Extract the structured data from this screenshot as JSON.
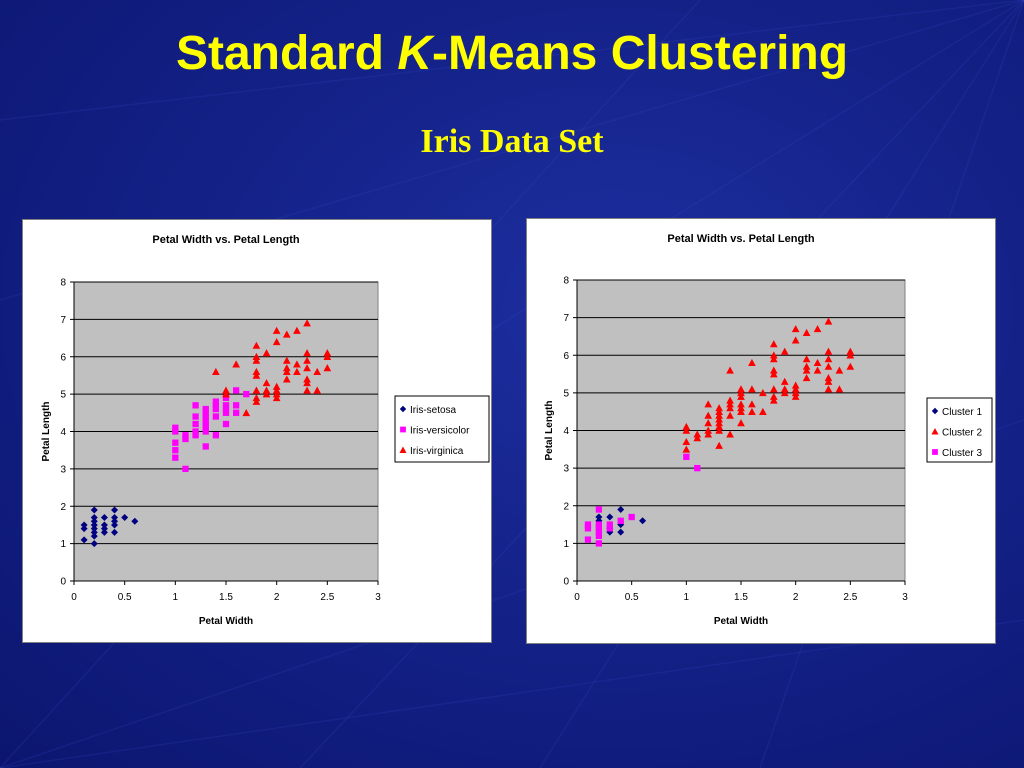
{
  "slide": {
    "title_prefix": "Standard ",
    "title_k": "K",
    "title_suffix": "-Means Clustering",
    "subtitle": "Iris Data Set"
  },
  "colors": {
    "background": "#142289",
    "title": "#ffff00",
    "plot_area": "#c0c0c0",
    "navy": "#000080",
    "magenta": "#ff00ff",
    "red": "#ff0000"
  },
  "chart_data": [
    {
      "type": "scatter",
      "title": "Petal Width vs. Petal Length",
      "xlabel": "Petal Width",
      "ylabel": "Petal Length",
      "xlim": [
        0,
        3
      ],
      "ylim": [
        0,
        8
      ],
      "xticks": [
        "0",
        "0.5",
        "1",
        "1.5",
        "2",
        "2.5",
        "3"
      ],
      "yticks": [
        "0",
        "1",
        "2",
        "3",
        "4",
        "5",
        "6",
        "7",
        "8"
      ],
      "grid": "horizontal",
      "legend_position": "right",
      "series": [
        {
          "name": "Iris-setosa",
          "marker": "diamond",
          "color": "#000080",
          "points": [
            [
              0.1,
              1.1
            ],
            [
              0.1,
              1.4
            ],
            [
              0.1,
              1.5
            ],
            [
              0.2,
              1.0
            ],
            [
              0.2,
              1.2
            ],
            [
              0.2,
              1.3
            ],
            [
              0.2,
              1.4
            ],
            [
              0.2,
              1.5
            ],
            [
              0.2,
              1.6
            ],
            [
              0.2,
              1.7
            ],
            [
              0.2,
              1.9
            ],
            [
              0.3,
              1.3
            ],
            [
              0.3,
              1.4
            ],
            [
              0.3,
              1.5
            ],
            [
              0.3,
              1.7
            ],
            [
              0.4,
              1.3
            ],
            [
              0.4,
              1.5
            ],
            [
              0.4,
              1.6
            ],
            [
              0.4,
              1.7
            ],
            [
              0.4,
              1.9
            ],
            [
              0.5,
              1.7
            ],
            [
              0.6,
              1.6
            ]
          ]
        },
        {
          "name": "Iris-versicolor",
          "marker": "square",
          "color": "#ff00ff",
          "points": [
            [
              1.0,
              3.3
            ],
            [
              1.0,
              3.5
            ],
            [
              1.0,
              3.7
            ],
            [
              1.0,
              4.0
            ],
            [
              1.0,
              4.1
            ],
            [
              1.1,
              3.0
            ],
            [
              1.1,
              3.8
            ],
            [
              1.1,
              3.9
            ],
            [
              1.2,
              3.9
            ],
            [
              1.2,
              4.0
            ],
            [
              1.2,
              4.2
            ],
            [
              1.2,
              4.4
            ],
            [
              1.2,
              4.7
            ],
            [
              1.3,
              3.6
            ],
            [
              1.3,
              4.0
            ],
            [
              1.3,
              4.1
            ],
            [
              1.3,
              4.2
            ],
            [
              1.3,
              4.3
            ],
            [
              1.3,
              4.4
            ],
            [
              1.3,
              4.5
            ],
            [
              1.3,
              4.6
            ],
            [
              1.4,
              3.9
            ],
            [
              1.4,
              4.4
            ],
            [
              1.4,
              4.6
            ],
            [
              1.4,
              4.7
            ],
            [
              1.4,
              4.8
            ],
            [
              1.5,
              4.2
            ],
            [
              1.5,
              4.5
            ],
            [
              1.5,
              4.6
            ],
            [
              1.5,
              4.7
            ],
            [
              1.5,
              4.9
            ],
            [
              1.6,
              4.5
            ],
            [
              1.6,
              4.7
            ],
            [
              1.6,
              5.1
            ],
            [
              1.7,
              5.0
            ]
          ]
        },
        {
          "name": "Iris-virginica",
          "marker": "triangle",
          "color": "#ff0000",
          "points": [
            [
              1.4,
              5.6
            ],
            [
              1.5,
              5.0
            ],
            [
              1.5,
              5.1
            ],
            [
              1.6,
              5.8
            ],
            [
              1.7,
              4.5
            ],
            [
              1.8,
              4.8
            ],
            [
              1.8,
              4.9
            ],
            [
              1.8,
              5.1
            ],
            [
              1.8,
              5.5
            ],
            [
              1.8,
              5.6
            ],
            [
              1.8,
              5.9
            ],
            [
              1.8,
              6.0
            ],
            [
              1.8,
              6.3
            ],
            [
              1.9,
              5.0
            ],
            [
              1.9,
              5.1
            ],
            [
              1.9,
              5.3
            ],
            [
              1.9,
              6.1
            ],
            [
              2.0,
              4.9
            ],
            [
              2.0,
              5.0
            ],
            [
              2.0,
              5.1
            ],
            [
              2.0,
              5.2
            ],
            [
              2.0,
              6.4
            ],
            [
              2.0,
              6.7
            ],
            [
              2.1,
              5.4
            ],
            [
              2.1,
              5.6
            ],
            [
              2.1,
              5.7
            ],
            [
              2.1,
              5.9
            ],
            [
              2.1,
              6.6
            ],
            [
              2.2,
              5.6
            ],
            [
              2.2,
              5.8
            ],
            [
              2.2,
              6.7
            ],
            [
              2.3,
              5.1
            ],
            [
              2.3,
              5.3
            ],
            [
              2.3,
              5.4
            ],
            [
              2.3,
              5.7
            ],
            [
              2.3,
              5.9
            ],
            [
              2.3,
              6.1
            ],
            [
              2.3,
              6.9
            ],
            [
              2.4,
              5.1
            ],
            [
              2.4,
              5.6
            ],
            [
              2.5,
              5.7
            ],
            [
              2.5,
              6.0
            ],
            [
              2.5,
              6.1
            ]
          ]
        }
      ]
    },
    {
      "type": "scatter",
      "title": "Petal Width vs. Petal Length",
      "xlabel": "Petal Width",
      "ylabel": "Petal Length",
      "xlim": [
        0,
        3
      ],
      "ylim": [
        0,
        8
      ],
      "xticks": [
        "0",
        "0.5",
        "1",
        "1.5",
        "2",
        "2.5",
        "3"
      ],
      "yticks": [
        "0",
        "1",
        "2",
        "3",
        "4",
        "5",
        "6",
        "7",
        "8"
      ],
      "grid": "horizontal",
      "legend_position": "right",
      "series": [
        {
          "name": "Cluster 1",
          "marker": "diamond",
          "color": "#000080",
          "points": [
            [
              0.2,
              1.6
            ],
            [
              0.2,
              1.7
            ],
            [
              0.3,
              1.3
            ],
            [
              0.3,
              1.4
            ],
            [
              0.3,
              1.7
            ],
            [
              0.4,
              1.3
            ],
            [
              0.4,
              1.5
            ],
            [
              0.4,
              1.9
            ],
            [
              0.6,
              1.6
            ]
          ]
        },
        {
          "name": "Cluster 2",
          "marker": "triangle",
          "color": "#ff0000",
          "points": [
            [
              1.0,
              3.5
            ],
            [
              1.0,
              3.7
            ],
            [
              1.0,
              4.0
            ],
            [
              1.0,
              4.1
            ],
            [
              1.1,
              3.8
            ],
            [
              1.1,
              3.9
            ],
            [
              1.2,
              3.9
            ],
            [
              1.2,
              4.0
            ],
            [
              1.2,
              4.2
            ],
            [
              1.2,
              4.4
            ],
            [
              1.2,
              4.7
            ],
            [
              1.3,
              3.6
            ],
            [
              1.3,
              4.0
            ],
            [
              1.3,
              4.1
            ],
            [
              1.3,
              4.2
            ],
            [
              1.3,
              4.3
            ],
            [
              1.3,
              4.4
            ],
            [
              1.3,
              4.5
            ],
            [
              1.3,
              4.6
            ],
            [
              1.4,
              3.9
            ],
            [
              1.4,
              4.4
            ],
            [
              1.4,
              4.6
            ],
            [
              1.4,
              4.7
            ],
            [
              1.4,
              4.8
            ],
            [
              1.4,
              5.6
            ],
            [
              1.5,
              4.2
            ],
            [
              1.5,
              4.5
            ],
            [
              1.5,
              4.6
            ],
            [
              1.5,
              4.7
            ],
            [
              1.5,
              4.9
            ],
            [
              1.5,
              5.0
            ],
            [
              1.5,
              5.1
            ],
            [
              1.6,
              4.5
            ],
            [
              1.6,
              4.7
            ],
            [
              1.6,
              5.1
            ],
            [
              1.6,
              5.8
            ],
            [
              1.7,
              4.5
            ],
            [
              1.7,
              5.0
            ],
            [
              1.8,
              4.8
            ],
            [
              1.8,
              4.9
            ],
            [
              1.8,
              5.1
            ],
            [
              1.8,
              5.5
            ],
            [
              1.8,
              5.6
            ],
            [
              1.8,
              5.9
            ],
            [
              1.8,
              6.0
            ],
            [
              1.8,
              6.3
            ],
            [
              1.9,
              5.0
            ],
            [
              1.9,
              5.1
            ],
            [
              1.9,
              5.3
            ],
            [
              1.9,
              6.1
            ],
            [
              2.0,
              4.9
            ],
            [
              2.0,
              5.0
            ],
            [
              2.0,
              5.1
            ],
            [
              2.0,
              5.2
            ],
            [
              2.0,
              6.4
            ],
            [
              2.0,
              6.7
            ],
            [
              2.1,
              5.4
            ],
            [
              2.1,
              5.6
            ],
            [
              2.1,
              5.7
            ],
            [
              2.1,
              5.9
            ],
            [
              2.1,
              6.6
            ],
            [
              2.2,
              5.6
            ],
            [
              2.2,
              5.8
            ],
            [
              2.2,
              6.7
            ],
            [
              2.3,
              5.1
            ],
            [
              2.3,
              5.3
            ],
            [
              2.3,
              5.4
            ],
            [
              2.3,
              5.7
            ],
            [
              2.3,
              5.9
            ],
            [
              2.3,
              6.1
            ],
            [
              2.3,
              6.9
            ],
            [
              2.4,
              5.1
            ],
            [
              2.4,
              5.6
            ],
            [
              2.5,
              5.7
            ],
            [
              2.5,
              6.0
            ],
            [
              2.5,
              6.1
            ]
          ]
        },
        {
          "name": "Cluster 3",
          "marker": "square",
          "color": "#ff00ff",
          "points": [
            [
              0.1,
              1.1
            ],
            [
              0.1,
              1.4
            ],
            [
              0.1,
              1.5
            ],
            [
              0.2,
              1.0
            ],
            [
              0.2,
              1.2
            ],
            [
              0.2,
              1.3
            ],
            [
              0.2,
              1.4
            ],
            [
              0.2,
              1.5
            ],
            [
              0.2,
              1.9
            ],
            [
              0.3,
              1.4
            ],
            [
              0.3,
              1.5
            ],
            [
              0.4,
              1.6
            ],
            [
              0.5,
              1.7
            ],
            [
              1.0,
              3.3
            ],
            [
              1.1,
              3.0
            ]
          ]
        }
      ]
    }
  ]
}
